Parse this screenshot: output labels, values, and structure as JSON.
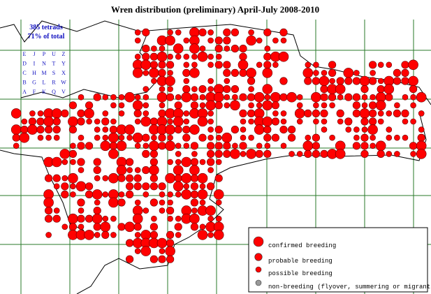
{
  "title": "Wren distribution (preliminary) April-July 2008-2010",
  "stats": [
    "385 tetrads",
    "71% of total"
  ],
  "tetrad_key": {
    "rows": [
      [
        "E",
        "J",
        "P",
        "U",
        "Z"
      ],
      [
        "D",
        "I",
        "N",
        "T",
        "Y"
      ],
      [
        "C",
        "H",
        "M",
        "S",
        "X"
      ],
      [
        "B",
        "G",
        "L",
        "R",
        "W"
      ],
      [
        "A",
        "F",
        "K",
        "Q",
        "V"
      ]
    ]
  },
  "legend": {
    "items": [
      "confirmed breeding",
      "probable breeding",
      "possible breeding",
      "non-breeding (flyover, summering or migrant)"
    ]
  }
}
